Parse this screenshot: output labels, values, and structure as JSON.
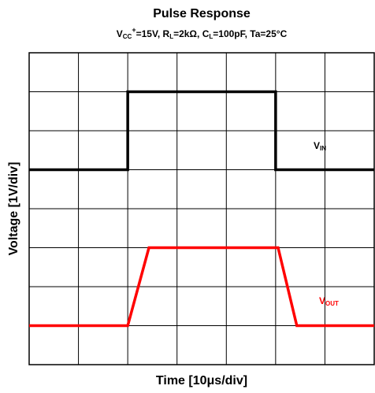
{
  "chart_data": {
    "type": "line",
    "title": "Pulse Response",
    "subtitle_parts": [
      "V",
      "CC",
      "+",
      "=15V, R",
      "L",
      "=2kΩ, C",
      "L",
      "=100pF, Ta=25°C"
    ],
    "xlabel": "Time [10μs/div]",
    "ylabel": "Voltage [1V/div]",
    "xlim": [
      0,
      7
    ],
    "ylim": [
      0,
      8
    ],
    "xticks": [
      0,
      1,
      2,
      3,
      4,
      5,
      6,
      7
    ],
    "yticks": [
      0,
      1,
      2,
      3,
      4,
      5,
      6,
      7,
      8
    ],
    "grid": true,
    "series": [
      {
        "label_parts": [
          "V",
          "IN"
        ],
        "color": "#000000",
        "x": [
          0,
          2,
          2,
          5,
          5,
          7
        ],
        "values": [
          5,
          5,
          7,
          7,
          5,
          5
        ]
      },
      {
        "label_parts": [
          "V",
          "OUT"
        ],
        "color": "#ff0000",
        "x": [
          0,
          2,
          2.43,
          5.05,
          5.43,
          7
        ],
        "values": [
          1,
          1,
          3,
          3,
          1,
          1
        ]
      }
    ]
  }
}
